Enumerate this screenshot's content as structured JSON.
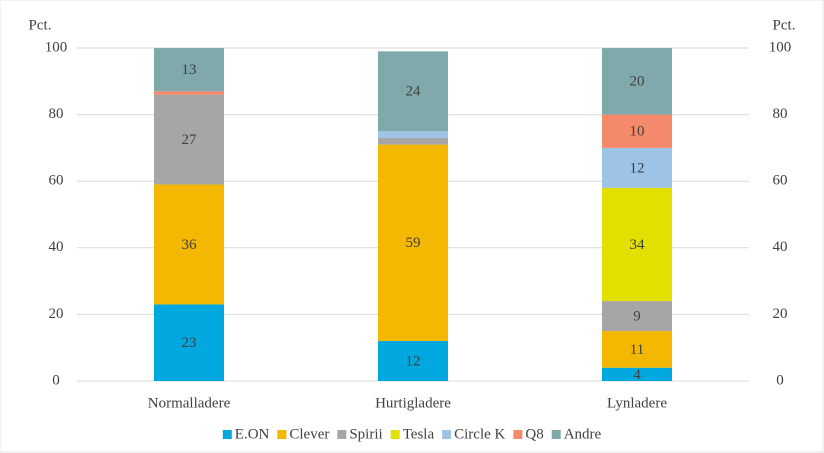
{
  "chart_data": {
    "type": "stacked_bar",
    "y_label": "Pct.",
    "y2_label": "Pct.",
    "categories": [
      "Normalladere",
      "Hurtigladere",
      "Lynladere"
    ],
    "series": [
      {
        "name": "E.ON",
        "color": "#00a8e0",
        "values": [
          23,
          12,
          4
        ]
      },
      {
        "name": "Clever",
        "color": "#f5b800",
        "values": [
          36,
          59,
          11
        ]
      },
      {
        "name": "Spirii",
        "color": "#a6a6a6",
        "values": [
          27,
          2,
          9
        ]
      },
      {
        "name": "Tesla",
        "color": "#e2e000",
        "values": [
          0,
          0,
          34
        ]
      },
      {
        "name": "Circle K",
        "color": "#9dc3e6",
        "values": [
          0,
          2,
          12
        ]
      },
      {
        "name": "Q8",
        "color": "#f4896b",
        "values": [
          1,
          0,
          10
        ]
      },
      {
        "name": "Andre",
        "color": "#7fa9ab",
        "values": [
          13,
          24,
          20
        ]
      }
    ],
    "ylim": [
      0,
      100
    ],
    "yticks": [
      0,
      20,
      40,
      60,
      80,
      100
    ],
    "y2lim": [
      0,
      100
    ],
    "y2ticks": [
      0,
      20,
      40,
      60,
      80,
      100
    ],
    "grid": true,
    "legend": "bottom"
  }
}
